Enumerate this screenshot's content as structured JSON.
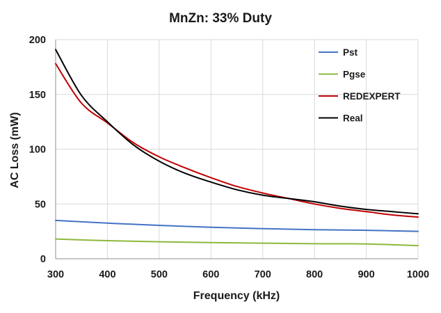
{
  "chart_data": {
    "type": "line",
    "title": "MnZn: 33% Duty",
    "xlabel": "Frequency (kHz)",
    "ylabel": "AC Loss (mW)",
    "xlim": [
      300,
      1000
    ],
    "ylim": [
      0,
      200
    ],
    "x_ticks": [
      300,
      400,
      500,
      600,
      700,
      800,
      900,
      1000
    ],
    "y_ticks": [
      0,
      50,
      100,
      150,
      200
    ],
    "grid": true,
    "legend_position": "top-right",
    "series": [
      {
        "name": "Pst",
        "color": "#4472c4",
        "x": [
          300,
          400,
          500,
          600,
          700,
          800,
          900,
          1000
        ],
        "y": [
          35,
          32.5,
          30.5,
          28.7,
          27.5,
          26.5,
          26,
          25
        ]
      },
      {
        "name": "Pgse",
        "color": "#8db83c",
        "x": [
          300,
          400,
          500,
          600,
          700,
          800,
          900,
          1000
        ],
        "y": [
          18,
          16.5,
          15.5,
          14.7,
          14.2,
          13.7,
          13.5,
          12
        ]
      },
      {
        "name": "REDEXPERT",
        "color": "#c00000",
        "x": [
          300,
          350,
          400,
          450,
          500,
          550,
          600,
          650,
          700,
          750,
          800,
          850,
          900,
          950,
          1000
        ],
        "y": [
          178,
          142,
          124,
          106,
          93,
          83,
          74,
          66,
          60,
          55,
          50,
          46,
          43,
          40,
          38
        ]
      },
      {
        "name": "Real",
        "color": "#000000",
        "x": [
          300,
          350,
          400,
          450,
          500,
          550,
          600,
          650,
          700,
          750,
          800,
          850,
          900,
          950,
          1000
        ],
        "y": [
          191,
          149,
          125,
          104,
          89,
          78,
          70,
          63,
          58,
          55,
          52,
          48,
          45,
          43,
          41
        ]
      }
    ]
  }
}
